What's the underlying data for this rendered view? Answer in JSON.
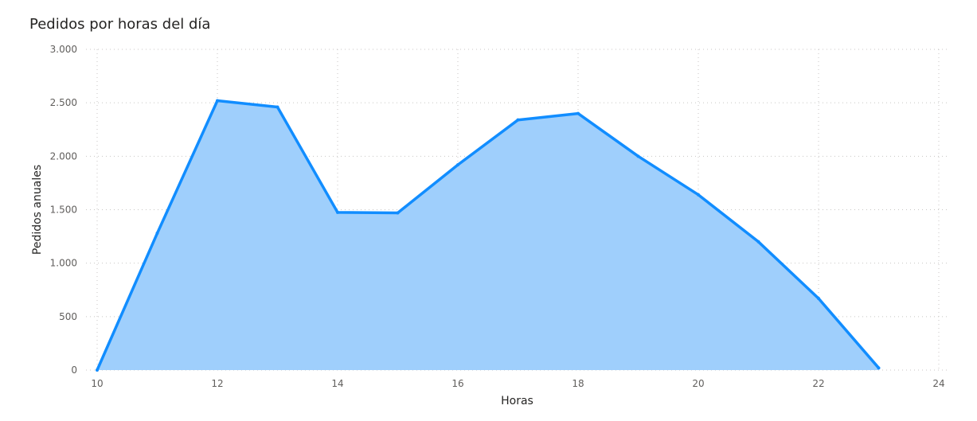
{
  "chart_data": {
    "type": "area",
    "title": "Pedidos por horas del día",
    "xlabel": "Horas",
    "ylabel": "Pedidos anuales",
    "xlim": [
      10,
      24
    ],
    "ylim": [
      0,
      3000
    ],
    "x_ticks": [
      10,
      12,
      14,
      16,
      18,
      20,
      22,
      24
    ],
    "y_ticks": [
      0,
      500,
      1000,
      1500,
      2000,
      2500,
      3000
    ],
    "y_tick_labels": [
      "0",
      "500",
      "1.000",
      "1.500",
      "2.000",
      "2.500",
      "3.000"
    ],
    "grid": true,
    "colors": {
      "line": "#118DFF",
      "fill": "#9FCFFC"
    },
    "series": [
      {
        "x": [
          10,
          11,
          12,
          13,
          14,
          15,
          16,
          17,
          18,
          19,
          20,
          21,
          22,
          23
        ],
        "values": [
          0,
          1280,
          2520,
          2460,
          1475,
          1470,
          1920,
          2340,
          2400,
          2000,
          1640,
          1200,
          670,
          20
        ]
      }
    ]
  }
}
